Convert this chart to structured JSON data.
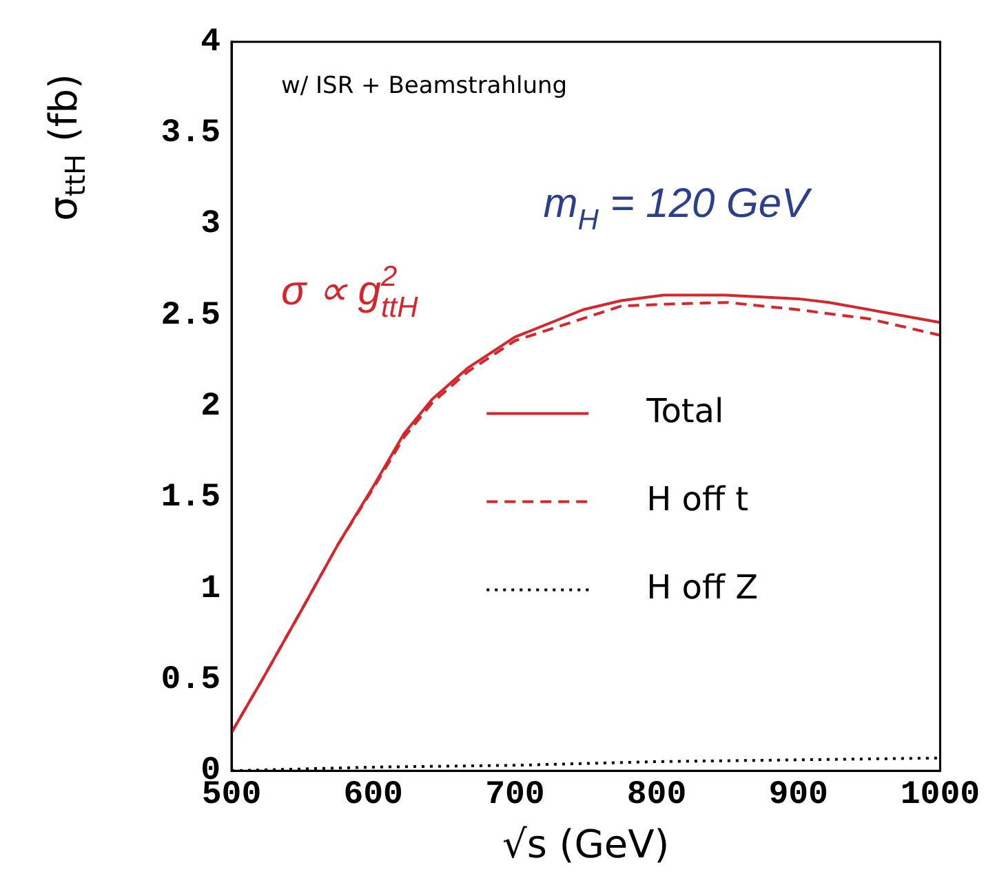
{
  "chart_data": {
    "type": "line",
    "xlabel": "√s (GeV)",
    "ylabel": "σ$_{ttH}$ (fb)",
    "xlim": [
      500,
      1000
    ],
    "xticks": [
      500,
      600,
      700,
      800,
      900,
      1000
    ],
    "ylim": [
      0,
      4
    ],
    "yticks": [
      0,
      {
        "value": 0.5,
        "label": "0.5"
      },
      1,
      {
        "value": 1.5,
        "label": "1.5"
      },
      2,
      {
        "value": 2.5,
        "label": "2.5"
      },
      3,
      {
        "value": 3.5,
        "label": "3.5"
      },
      4
    ],
    "grid": false,
    "legend": "right",
    "marker": "none",
    "annotations": [
      "w/ ISR + Beamstrahlung",
      "m$_{H}$ = 120 GeV",
      "σ ∝ g$^{2}$$_{ttH}$"
    ],
    "series": [
      {
        "name": "Total",
        "color": "#d7262b",
        "line_style": "solid",
        "x": [
          500,
          521.7,
          550,
          575,
          600,
          621.7,
          641.7,
          666.7,
          700,
          748,
          775,
          805,
          848,
          900,
          921.7,
          1000
        ],
        "values": [
          0.21,
          0.5,
          0.89,
          1.24,
          1.56,
          1.85,
          2.04,
          2.21,
          2.38,
          2.53,
          2.58,
          2.61,
          2.61,
          2.59,
          2.57,
          2.46
        ]
      },
      {
        "name": "H off t",
        "color": "#d7262b",
        "line_style": "dashed",
        "x": [
          500,
          521.7,
          550,
          575,
          600,
          621.7,
          641.7,
          666.7,
          700,
          775,
          805,
          850,
          900,
          950,
          1000
        ],
        "values": [
          0.21,
          0.5,
          0.89,
          1.24,
          1.55,
          1.83,
          2.02,
          2.19,
          2.36,
          2.55,
          2.56,
          2.57,
          2.53,
          2.48,
          2.39
        ]
      },
      {
        "name": "H off Z",
        "color": "#000000",
        "line_style": "dotted",
        "x": [
          500,
          600,
          700,
          800,
          900,
          1000
        ],
        "values": [
          0.0,
          0.02,
          0.03,
          0.05,
          0.06,
          0.07
        ]
      }
    ]
  }
}
